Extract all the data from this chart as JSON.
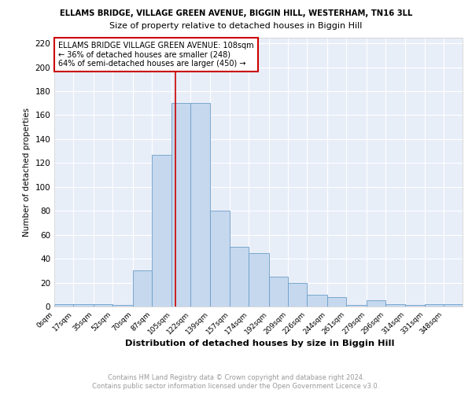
{
  "title1": "ELLAMS BRIDGE, VILLAGE GREEN AVENUE, BIGGIN HILL, WESTERHAM, TN16 3LL",
  "title2": "Size of property relative to detached houses in Biggin Hill",
  "xlabel": "Distribution of detached houses by size in Biggin Hill",
  "ylabel": "Number of detached properties",
  "bar_color": "#c5d8ee",
  "bar_edge_color": "#6b9ec8",
  "bg_color": "#e8eef8",
  "grid_color": "#ffffff",
  "annotation_line_color": "#cc0000",
  "annotation_property_sqm": 108,
  "annotation_text_line1": "ELLAMS BRIDGE VILLAGE GREEN AVENUE: 108sqm",
  "annotation_text_line2": "← 36% of detached houses are smaller (248)",
  "annotation_text_line3": "64% of semi-detached houses are larger (450) →",
  "bins": [
    0,
    17,
    35,
    52,
    70,
    87,
    105,
    122,
    139,
    157,
    174,
    192,
    209,
    226,
    244,
    261,
    279,
    296,
    314,
    331,
    348
  ],
  "values": [
    2,
    2,
    2,
    1,
    30,
    127,
    170,
    170,
    80,
    50,
    45,
    25,
    20,
    10,
    8,
    1,
    5,
    2,
    1,
    2,
    2
  ],
  "tick_labels": [
    "0sqm",
    "17sqm",
    "35sqm",
    "52sqm",
    "70sqm",
    "87sqm",
    "105sqm",
    "122sqm",
    "139sqm",
    "157sqm",
    "174sqm",
    "192sqm",
    "209sqm",
    "226sqm",
    "244sqm",
    "261sqm",
    "279sqm",
    "296sqm",
    "314sqm",
    "331sqm",
    "348sqm"
  ],
  "ylim": [
    0,
    225
  ],
  "yticks": [
    0,
    20,
    40,
    60,
    80,
    100,
    120,
    140,
    160,
    180,
    200,
    220
  ],
  "footnote1": "Contains HM Land Registry data © Crown copyright and database right 2024.",
  "footnote2": "Contains public sector information licensed under the Open Government Licence v3.0."
}
